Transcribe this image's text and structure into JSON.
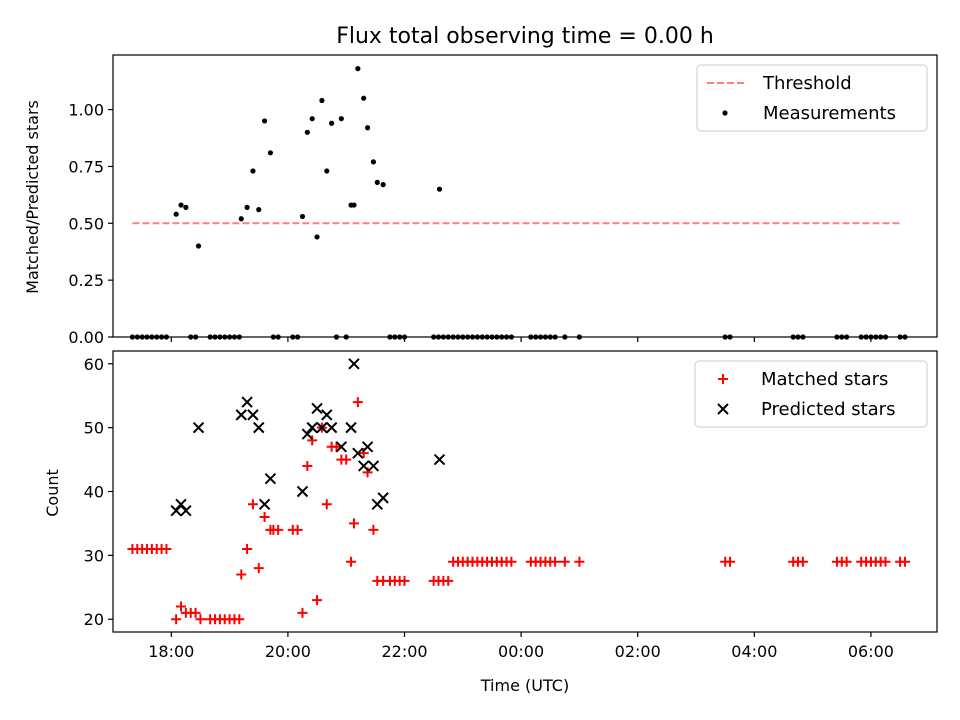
{
  "chart_data": [
    {
      "type": "scatter",
      "title": "Flux total observing time = 0.00 h",
      "xlabel": "",
      "ylabel": "Matched/Predicted stars",
      "xlim": [
        "17:00",
        "07:08"
      ],
      "ylim": [
        0,
        1.24
      ],
      "yticks": [
        0,
        0.25,
        0.5,
        0.75,
        1.0
      ],
      "ytick_labels": [
        "0.00",
        "0.25",
        "0.50",
        "0.75",
        "1.00"
      ],
      "xticks": [
        "18:00",
        "20:00",
        "22:00",
        "00:00",
        "02:00",
        "04:00",
        "06:00"
      ],
      "show_xtick_labels": false,
      "grid": false,
      "legend_position": "top-right",
      "series": [
        {
          "name": "Threshold",
          "style": "dashed-line",
          "color": "#ff7f7f",
          "points": [
            [
              "17:20",
              0.5
            ],
            [
              "06:30",
              0.5
            ]
          ]
        },
        {
          "name": "Measurements",
          "style": "dot",
          "color": "#000000",
          "points": [
            [
              "17:20",
              0
            ],
            [
              "17:25",
              0
            ],
            [
              "17:30",
              0
            ],
            [
              "17:35",
              0
            ],
            [
              "17:40",
              0
            ],
            [
              "17:45",
              0
            ],
            [
              "17:50",
              0
            ],
            [
              "17:55",
              0
            ],
            [
              "18:05",
              0.54
            ],
            [
              "18:10",
              0.58
            ],
            [
              "18:15",
              0.57
            ],
            [
              "18:20",
              0
            ],
            [
              "18:25",
              0
            ],
            [
              "18:28",
              0.4
            ],
            [
              "18:40",
              0
            ],
            [
              "18:45",
              0
            ],
            [
              "18:50",
              0
            ],
            [
              "18:55",
              0
            ],
            [
              "19:00",
              0
            ],
            [
              "19:05",
              0
            ],
            [
              "19:10",
              0
            ],
            [
              "19:12",
              0.52
            ],
            [
              "19:18",
              0.57
            ],
            [
              "19:24",
              0.73
            ],
            [
              "19:30",
              0.56
            ],
            [
              "19:36",
              0.95
            ],
            [
              "19:42",
              0.81
            ],
            [
              "19:45",
              0
            ],
            [
              "19:50",
              0
            ],
            [
              "20:05",
              0
            ],
            [
              "20:10",
              0
            ],
            [
              "20:15",
              0.53
            ],
            [
              "20:20",
              0.9
            ],
            [
              "20:25",
              0.96
            ],
            [
              "20:30",
              0.44
            ],
            [
              "20:35",
              1.04
            ],
            [
              "20:40",
              0.73
            ],
            [
              "20:45",
              0.94
            ],
            [
              "20:50",
              0
            ],
            [
              "20:55",
              0.96
            ],
            [
              "21:00",
              0
            ],
            [
              "21:05",
              0.58
            ],
            [
              "21:08",
              0.58
            ],
            [
              "21:12",
              1.18
            ],
            [
              "21:18",
              1.05
            ],
            [
              "21:22",
              0.92
            ],
            [
              "21:28",
              0.77
            ],
            [
              "21:32",
              0.68
            ],
            [
              "21:38",
              0.67
            ],
            [
              "21:45",
              0
            ],
            [
              "21:50",
              0
            ],
            [
              "21:55",
              0
            ],
            [
              "22:00",
              0
            ],
            [
              "22:30",
              0
            ],
            [
              "22:35",
              0
            ],
            [
              "22:40",
              0
            ],
            [
              "22:45",
              0
            ],
            [
              "22:36",
              0.65
            ],
            [
              "22:50",
              0
            ],
            [
              "22:55",
              0
            ],
            [
              "23:00",
              0
            ],
            [
              "23:05",
              0
            ],
            [
              "23:10",
              0
            ],
            [
              "23:15",
              0
            ],
            [
              "23:20",
              0
            ],
            [
              "23:25",
              0
            ],
            [
              "23:30",
              0
            ],
            [
              "23:35",
              0
            ],
            [
              "23:40",
              0
            ],
            [
              "23:45",
              0
            ],
            [
              "23:50",
              0
            ],
            [
              "00:10",
              0
            ],
            [
              "00:15",
              0
            ],
            [
              "00:20",
              0
            ],
            [
              "00:25",
              0
            ],
            [
              "00:30",
              0
            ],
            [
              "00:35",
              0
            ],
            [
              "00:45",
              0
            ],
            [
              "01:00",
              0
            ],
            [
              "03:30",
              0
            ],
            [
              "03:35",
              0
            ],
            [
              "04:40",
              0
            ],
            [
              "04:45",
              0
            ],
            [
              "04:50",
              0
            ],
            [
              "05:25",
              0
            ],
            [
              "05:30",
              0
            ],
            [
              "05:35",
              0
            ],
            [
              "05:50",
              0
            ],
            [
              "05:55",
              0
            ],
            [
              "06:00",
              0
            ],
            [
              "06:05",
              0
            ],
            [
              "06:10",
              0
            ],
            [
              "06:15",
              0
            ],
            [
              "06:30",
              0
            ],
            [
              "06:35",
              0
            ]
          ]
        }
      ]
    },
    {
      "type": "scatter",
      "title": "",
      "xlabel": "Time (UTC)",
      "ylabel": "Count",
      "xlim": [
        "17:00",
        "07:08"
      ],
      "ylim": [
        18,
        62
      ],
      "yticks": [
        20,
        30,
        40,
        50,
        60
      ],
      "ytick_labels": [
        "20",
        "30",
        "40",
        "50",
        "60"
      ],
      "xticks": [
        "18:00",
        "20:00",
        "22:00",
        "00:00",
        "02:00",
        "04:00",
        "06:00"
      ],
      "show_xtick_labels": true,
      "grid": false,
      "legend_position": "top-right",
      "series": [
        {
          "name": "Matched stars",
          "style": "plus",
          "color": "#ff0000",
          "points": [
            [
              "17:20",
              31
            ],
            [
              "17:25",
              31
            ],
            [
              "17:30",
              31
            ],
            [
              "17:35",
              31
            ],
            [
              "17:40",
              31
            ],
            [
              "17:45",
              31
            ],
            [
              "17:50",
              31
            ],
            [
              "17:55",
              31
            ],
            [
              "18:05",
              20
            ],
            [
              "18:10",
              22
            ],
            [
              "18:15",
              21
            ],
            [
              "18:20",
              21
            ],
            [
              "18:25",
              21
            ],
            [
              "18:30",
              20
            ],
            [
              "18:40",
              20
            ],
            [
              "18:45",
              20
            ],
            [
              "18:50",
              20
            ],
            [
              "18:55",
              20
            ],
            [
              "19:00",
              20
            ],
            [
              "19:05",
              20
            ],
            [
              "19:10",
              20
            ],
            [
              "19:12",
              27
            ],
            [
              "19:18",
              31
            ],
            [
              "19:24",
              38
            ],
            [
              "19:30",
              28
            ],
            [
              "19:36",
              36
            ],
            [
              "19:42",
              34
            ],
            [
              "19:45",
              34
            ],
            [
              "19:50",
              34
            ],
            [
              "20:05",
              34
            ],
            [
              "20:10",
              34
            ],
            [
              "20:15",
              21
            ],
            [
              "20:20",
              44
            ],
            [
              "20:25",
              48
            ],
            [
              "20:30",
              23
            ],
            [
              "20:35",
              50
            ],
            [
              "20:40",
              38
            ],
            [
              "20:45",
              47
            ],
            [
              "20:50",
              47
            ],
            [
              "20:55",
              45
            ],
            [
              "21:00",
              45
            ],
            [
              "21:05",
              29
            ],
            [
              "21:08",
              35
            ],
            [
              "21:12",
              54
            ],
            [
              "21:18",
              46
            ],
            [
              "21:22",
              43
            ],
            [
              "21:28",
              34
            ],
            [
              "21:32",
              26
            ],
            [
              "21:38",
              26
            ],
            [
              "21:45",
              26
            ],
            [
              "21:50",
              26
            ],
            [
              "21:55",
              26
            ],
            [
              "22:00",
              26
            ],
            [
              "22:30",
              26
            ],
            [
              "22:35",
              26
            ],
            [
              "22:40",
              26
            ],
            [
              "22:45",
              26
            ],
            [
              "22:50",
              29
            ],
            [
              "22:55",
              29
            ],
            [
              "23:00",
              29
            ],
            [
              "23:05",
              29
            ],
            [
              "23:10",
              29
            ],
            [
              "23:15",
              29
            ],
            [
              "23:20",
              29
            ],
            [
              "23:25",
              29
            ],
            [
              "23:30",
              29
            ],
            [
              "23:35",
              29
            ],
            [
              "23:40",
              29
            ],
            [
              "23:45",
              29
            ],
            [
              "23:50",
              29
            ],
            [
              "00:10",
              29
            ],
            [
              "00:15",
              29
            ],
            [
              "00:20",
              29
            ],
            [
              "00:25",
              29
            ],
            [
              "00:30",
              29
            ],
            [
              "00:35",
              29
            ],
            [
              "00:45",
              29
            ],
            [
              "01:00",
              29
            ],
            [
              "03:30",
              29
            ],
            [
              "03:35",
              29
            ],
            [
              "04:40",
              29
            ],
            [
              "04:45",
              29
            ],
            [
              "04:50",
              29
            ],
            [
              "05:25",
              29
            ],
            [
              "05:30",
              29
            ],
            [
              "05:35",
              29
            ],
            [
              "05:50",
              29
            ],
            [
              "05:55",
              29
            ],
            [
              "06:00",
              29
            ],
            [
              "06:05",
              29
            ],
            [
              "06:10",
              29
            ],
            [
              "06:15",
              29
            ],
            [
              "06:30",
              29
            ],
            [
              "06:35",
              29
            ]
          ]
        },
        {
          "name": "Predicted stars",
          "style": "x",
          "color": "#000000",
          "points": [
            [
              "18:05",
              37
            ],
            [
              "18:10",
              38
            ],
            [
              "18:15",
              37
            ],
            [
              "18:28",
              50
            ],
            [
              "19:12",
              52
            ],
            [
              "19:18",
              54
            ],
            [
              "19:24",
              52
            ],
            [
              "19:30",
              50
            ],
            [
              "19:36",
              38
            ],
            [
              "19:42",
              42
            ],
            [
              "20:15",
              40
            ],
            [
              "20:20",
              49
            ],
            [
              "20:25",
              50
            ],
            [
              "20:30",
              53
            ],
            [
              "20:35",
              50
            ],
            [
              "20:40",
              52
            ],
            [
              "20:45",
              50
            ],
            [
              "20:55",
              47
            ],
            [
              "21:05",
              50
            ],
            [
              "21:08",
              60
            ],
            [
              "21:12",
              46
            ],
            [
              "21:18",
              44
            ],
            [
              "21:22",
              47
            ],
            [
              "21:28",
              44
            ],
            [
              "21:32",
              38
            ],
            [
              "21:38",
              39
            ],
            [
              "22:36",
              45
            ]
          ]
        }
      ]
    }
  ]
}
